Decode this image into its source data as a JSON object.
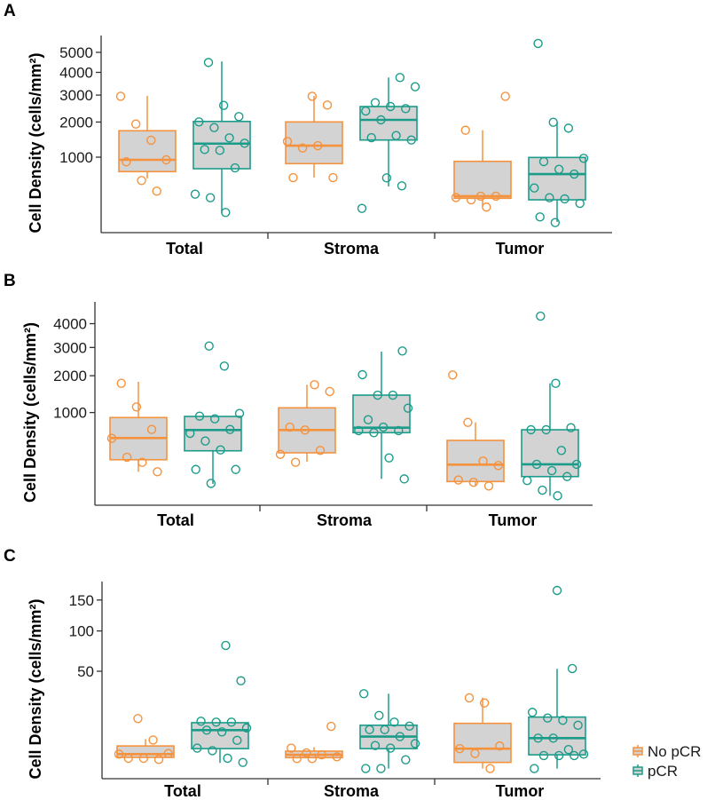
{
  "colors": {
    "No pCR": "#F5923E",
    "pCR": "#1B9C8A",
    "box_fill": "#D3D3D3",
    "axis": "#333333"
  },
  "legend": [
    {
      "label": "No pCR"
    },
    {
      "label": "pCR"
    }
  ],
  "chart_data": [
    {
      "panel": "A",
      "type": "box",
      "y_scale": "sqrt",
      "ylabel": "Cell Density (cells/mm²)",
      "yticks": [
        1000,
        2000,
        3000,
        4000,
        5000
      ],
      "categories": [
        "Total",
        "Stroma",
        "Tumor"
      ],
      "series": [
        {
          "name": "No pCR",
          "boxes": [
            {
              "q1": 688,
              "median": 938,
              "q3": 1720,
              "whisker_low": 561,
              "whisker_high": 2966,
              "points": [
                2950,
                1935,
                1438,
                938,
                893,
                525,
                358
              ]
            },
            {
              "q1": 853,
              "median": 1290,
              "q3": 2004,
              "whisker_low": 576,
              "whisker_high": 2966,
              "points": [
                2950,
                2605,
                1405,
                1228,
                1290,
                576,
                576
              ]
            },
            {
              "q1": 265,
              "median": 291,
              "q3": 904,
              "whisker_low": 177,
              "whisker_high": 1737,
              "points": [
                2950,
                1737,
                291,
                291,
                275,
                247,
                169
              ]
            }
          ]
        },
        {
          "name": "pCR",
          "boxes": [
            {
              "q1": 746,
              "median": 1345,
              "q3": 2020,
              "whisker_low": 116,
              "whisker_high": 4530,
              "points": [
                4480,
                2593,
                2187,
                2004,
                1818,
                1505,
                1356,
                1190,
                1167,
                764,
                317,
                272,
                121
              ]
            },
            {
              "q1": 1445,
              "median": 2073,
              "q3": 2550,
              "whisker_low": 428,
              "whisker_high": 3760,
              "points": [
                3760,
                3350,
                2695,
                2550,
                2473,
                2385,
                2073,
                1574,
                1445,
                1513,
                571,
                438,
                157
              ]
            },
            {
              "q1": 247,
              "median": 641,
              "q3": 993,
              "whisker_low": 56,
              "whisker_high": 1992,
              "points": [
                5478,
                1992,
                1800,
                973,
                898,
                734,
                641,
                405,
                272,
                258,
                207,
                87,
                52
              ]
            }
          ]
        }
      ]
    },
    {
      "panel": "B",
      "type": "box",
      "y_scale": "sqrt",
      "ylabel": "Cell Density (cells/mm²)",
      "yticks": [
        1000,
        2000,
        3000,
        4000
      ],
      "categories": [
        "Total",
        "Stroma",
        "Tumor"
      ],
      "series": [
        {
          "name": "No pCR",
          "boxes": [
            {
              "q1": 220,
              "median": 509,
              "q3": 890,
              "whisker_low": 111,
              "whisker_high": 1812,
              "points": [
                1766,
                1130,
                655,
                503,
                247,
                193,
                111
              ]
            },
            {
              "q1": 299,
              "median": 645,
              "q3": 1109,
              "whisker_low": 199,
              "whisker_high": 1723,
              "points": [
                1723,
                1529,
                699,
                645,
                329,
                280,
                193
              ]
            },
            {
              "q1": 50,
              "median": 171,
              "q3": 471,
              "whisker_low": 32,
              "whisker_high": 790,
              "points": [
                2024,
                790,
                206,
                163,
                58,
                46,
                30
              ]
            }
          ]
        },
        {
          "name": "pCR",
          "boxes": [
            {
              "q1": 324,
              "median": 645,
              "q3": 914,
              "whisker_low": 39,
              "whisker_high": 914,
              "points": [
                3057,
                2319,
                978,
                920,
                863,
                655,
                587,
                462,
                336,
                129,
                129,
                41
              ]
            },
            {
              "q1": 598,
              "median": 688,
              "q3": 1430,
              "whisker_low": 64,
              "whisker_high": 2841,
              "points": [
                2865,
                2033,
                1430,
                1430,
                1101,
                845,
                699,
                634,
                634,
                598,
                240,
                64
              ]
            },
            {
              "q1": 78,
              "median": 174,
              "q3": 650,
              "whisker_low": 4,
              "whisker_high": 1766,
              "points": [
                4345,
                1766,
                688,
                650,
                650,
                329,
                174,
                174,
                120,
                78,
                55,
                16,
                4
              ]
            }
          ]
        }
      ]
    },
    {
      "panel": "C",
      "type": "box",
      "y_scale": "sqrt",
      "ylabel": "Cell Density (cells/mm²)",
      "yticks": [
        50,
        100,
        150
      ],
      "categories": [
        "Total",
        "Stroma",
        "Tumor"
      ],
      "series": [
        {
          "name": "No pCR",
          "boxes": [
            {
              "q1": 0.66,
              "median": 1.1,
              "q3": 2.7,
              "whisker_low": 0.6,
              "whisker_high": 4.6,
              "points": [
                13.2,
                4.3,
                1.2,
                0.56,
                0.56,
                0.44,
                1.1
              ]
            },
            {
              "q1": 0.63,
              "median": 1.0,
              "q3": 1.6,
              "whisker_low": 0.6,
              "whisker_high": 2.4,
              "points": [
                9.4,
                2.2,
                1.3,
                1.0,
                0.74,
                0.53,
                0.53
              ]
            },
            {
              "q1": 0.2,
              "median": 2.1,
              "q3": 10.8,
              "whisker_low": 0,
              "whisker_high": 26.6,
              "points": [
                26.4,
                22.7,
                2.7,
                2.1,
                1.2,
                0
              ]
            }
          ]
        },
        {
          "name": "pCR",
          "boxes": [
            {
              "q1": 2.1,
              "median": 7.8,
              "q3": 11.1,
              "whisker_low": 0.17,
              "whisker_high": 12.1,
              "points": [
                80,
                40.7,
                11.8,
                11.4,
                11.4,
                8.7,
                7.8,
                7.1,
                4.2,
                2.2,
                1.7,
                0.56,
                0.2
              ]
            },
            {
              "q1": 2.1,
              "median": 5.4,
              "q3": 9.9,
              "whisker_low": 0,
              "whisker_high": 29.6,
              "points": [
                29.6,
                14.9,
                11.4,
                9.5,
                8,
                8,
                5.4,
                3.3,
                2.8,
                2.2,
                0.41,
                0,
                0
              ]
            },
            {
              "q1": 1.0,
              "median": 4.9,
              "q3": 14,
              "whisker_low": 0,
              "whisker_high": 52.5,
              "points": [
                167.5,
                52.8,
                16.7,
                13.5,
                12.3,
                9.9,
                4.9,
                4.9,
                1.9,
                1.1,
                0.9,
                0.9,
                0.9,
                0
              ]
            }
          ]
        }
      ]
    }
  ]
}
